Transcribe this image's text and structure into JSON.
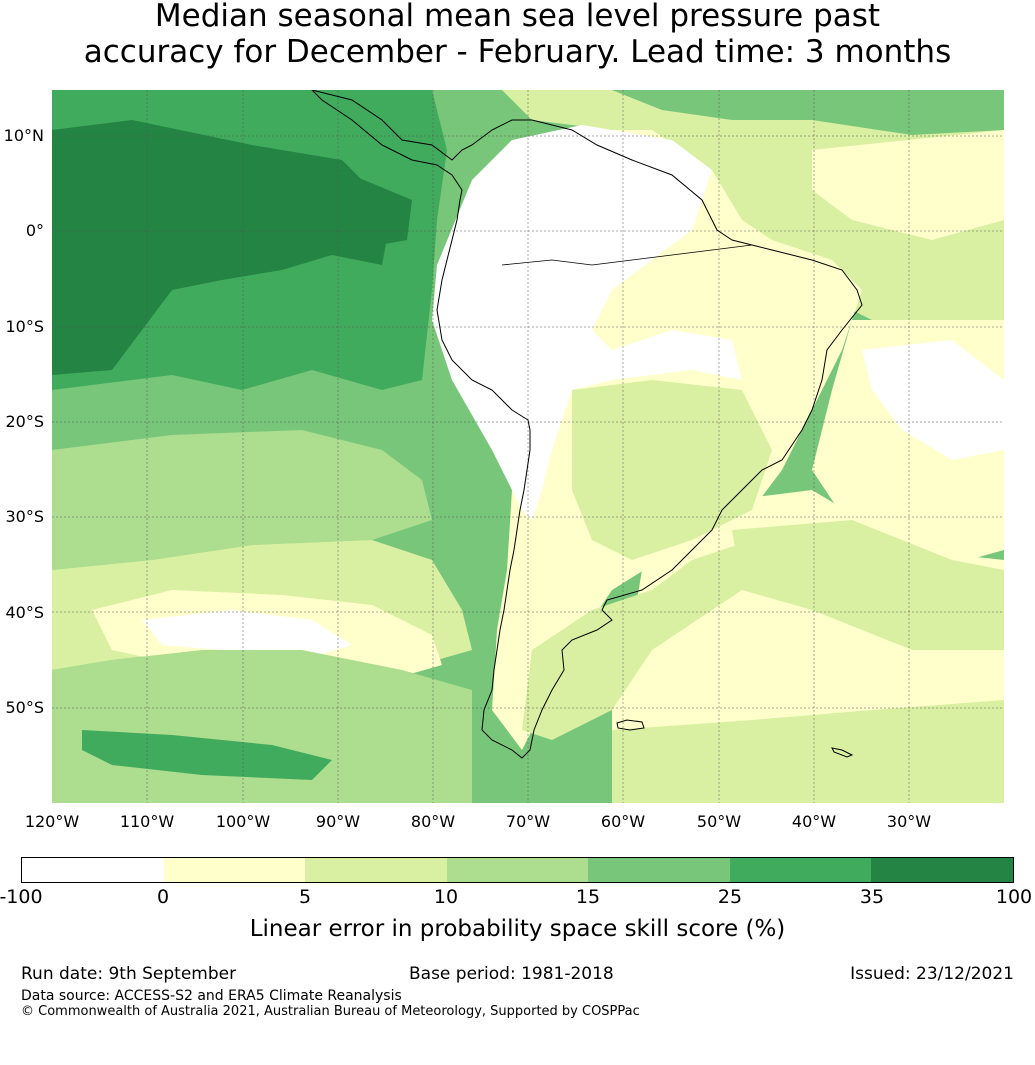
{
  "title_line1": "Median seasonal mean sea level pressure past",
  "title_line2": "accuracy for December - February. Lead time: 3 months",
  "lat_labels": [
    "10°N",
    "0°",
    "10°S",
    "20°S",
    "30°S",
    "40°S",
    "50°S"
  ],
  "lon_labels": [
    "120°W",
    "110°W",
    "100°W",
    "90°W",
    "80°W",
    "70°W",
    "60°W",
    "50°W",
    "40°W",
    "30°W"
  ],
  "colorbar": {
    "ticks": [
      "-100",
      "0",
      "5",
      "10",
      "15",
      "25",
      "35",
      "100"
    ],
    "colors": [
      "#ffffff",
      "#ffffcc",
      "#d9f0a3",
      "#addd8e",
      "#78c679",
      "#41ab5d",
      "#238443"
    ],
    "label": "Linear error in probability space skill score (%)"
  },
  "footer": {
    "run_date": "Run date: 9th September",
    "base_period": "Base period: 1981-2018",
    "issued": "Issued: 23/12/2021",
    "data_source": "Data source: ACCESS-S2 and ERA5 Climate Reanalysis",
    "copyright": "© Commonwealth of Australia 2021, Australian Bureau of Meteorology, Supported by COSPPac"
  }
}
